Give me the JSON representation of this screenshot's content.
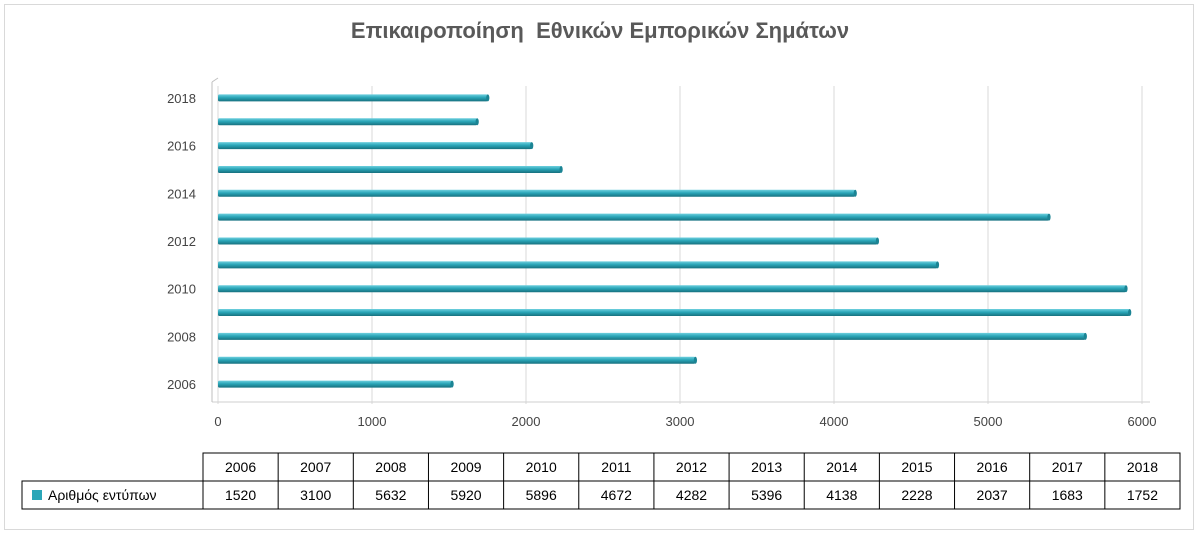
{
  "chart_data": {
    "type": "bar",
    "orientation": "horizontal",
    "title": "Επικαιροποίηση  Εθνικών Εμπορικών Σημάτων",
    "categories": [
      "2006",
      "2007",
      "2008",
      "2009",
      "2010",
      "2011",
      "2012",
      "2013",
      "2014",
      "2015",
      "2016",
      "2017",
      "2018"
    ],
    "series": [
      {
        "name": "Αριθμός εντύπων",
        "values": [
          1520,
          3100,
          5632,
          5920,
          5896,
          4672,
          4282,
          5396,
          4138,
          2228,
          2037,
          1683,
          1752
        ]
      }
    ],
    "y_tick_labels": [
      "2006",
      "2008",
      "2010",
      "2012",
      "2014",
      "2016",
      "2018"
    ],
    "x_ticks": [
      0,
      1000,
      2000,
      3000,
      4000,
      5000,
      6000
    ],
    "xlim": [
      0,
      6000
    ],
    "grid": "vertical",
    "data_table": true,
    "colors": {
      "bar": "#2aa6b8",
      "bar_light": "#6fd0df",
      "bar_dark": "#17707e",
      "grid": "#d9d9d9",
      "title": "#595959"
    }
  }
}
